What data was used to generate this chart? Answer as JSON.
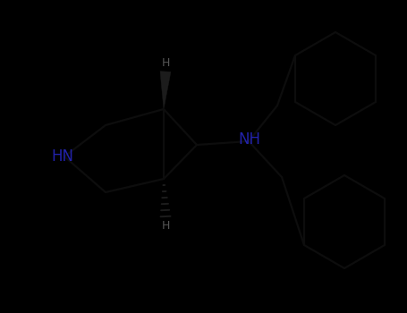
{
  "background_color": "#000000",
  "nitrogen_color": "#2222aa",
  "bond_color": "#0d0d0d",
  "fig_width": 4.55,
  "fig_height": 3.5,
  "dpi": 100,
  "HN_label": "HN",
  "NH_label": "NH",
  "H_top_label": "H",
  "H_bot_label": "H"
}
